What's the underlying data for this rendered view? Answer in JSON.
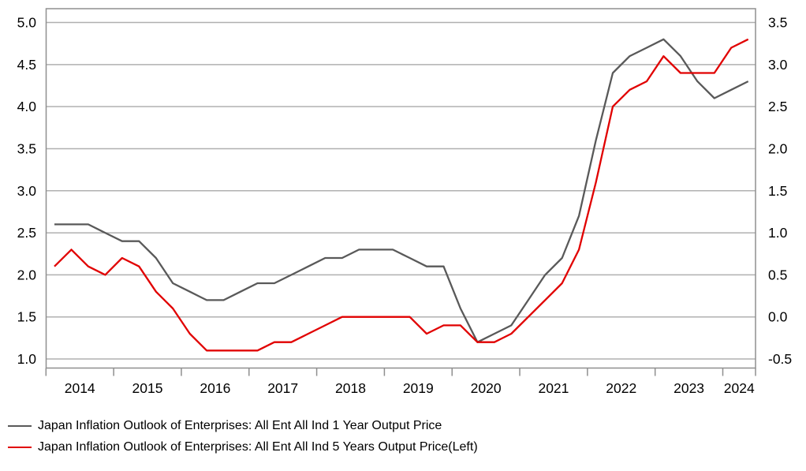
{
  "chart_data": {
    "type": "line",
    "title": "",
    "x": [
      "2014 Q1",
      "2014 Q2",
      "2014 Q3",
      "2014 Q4",
      "2015 Q1",
      "2015 Q2",
      "2015 Q3",
      "2015 Q4",
      "2016 Q1",
      "2016 Q2",
      "2016 Q3",
      "2016 Q4",
      "2017 Q1",
      "2017 Q2",
      "2017 Q3",
      "2017 Q4",
      "2018 Q1",
      "2018 Q2",
      "2018 Q3",
      "2018 Q4",
      "2019 Q1",
      "2019 Q2",
      "2019 Q3",
      "2019 Q4",
      "2020 Q1",
      "2020 Q2",
      "2020 Q3",
      "2020 Q4",
      "2021 Q1",
      "2021 Q2",
      "2021 Q3",
      "2021 Q4",
      "2022 Q1",
      "2022 Q2",
      "2022 Q3",
      "2022 Q4",
      "2023 Q1",
      "2023 Q2",
      "2023 Q3",
      "2023 Q4",
      "2024 Q1",
      "2024 Q2"
    ],
    "x_tick_labels": [
      "2014",
      "2015",
      "2016",
      "2017",
      "2018",
      "2019",
      "2020",
      "2021",
      "2022",
      "2023",
      "2024"
    ],
    "series": [
      {
        "name": "Japan Inflation Outlook of Enterprises: All Ent All Ind 1 Year Output Price",
        "axis": "right",
        "color": "#595959",
        "values": [
          1.1,
          1.1,
          1.1,
          1.0,
          0.9,
          0.9,
          0.7,
          0.4,
          0.3,
          0.2,
          0.2,
          0.3,
          0.4,
          0.4,
          0.5,
          0.6,
          0.7,
          0.7,
          0.8,
          0.8,
          0.8,
          0.7,
          0.6,
          0.6,
          0.1,
          -0.3,
          -0.2,
          -0.1,
          0.2,
          0.5,
          0.7,
          1.2,
          2.1,
          2.9,
          3.1,
          3.2,
          3.3,
          3.1,
          2.8,
          2.6,
          2.7,
          2.8
        ]
      },
      {
        "name": "Japan Inflation Outlook of Enterprises: All Ent All Ind 5 Years Output Price(Left)",
        "axis": "left",
        "color": "#e10000",
        "values": [
          2.1,
          2.3,
          2.1,
          2.0,
          2.2,
          2.1,
          1.8,
          1.6,
          1.3,
          1.1,
          1.1,
          1.1,
          1.1,
          1.2,
          1.2,
          1.3,
          1.4,
          1.5,
          1.5,
          1.5,
          1.5,
          1.5,
          1.3,
          1.4,
          1.4,
          1.2,
          1.2,
          1.3,
          1.5,
          1.7,
          1.9,
          2.3,
          3.1,
          4.0,
          4.2,
          4.3,
          4.6,
          4.4,
          4.4,
          4.4,
          4.7,
          4.8
        ]
      }
    ],
    "left_axis": {
      "min": 1.0,
      "max": 5.0,
      "tick_labels": [
        "5.0",
        "4.5",
        "4.0",
        "3.5",
        "3.0",
        "2.5",
        "2.0",
        "1.5",
        "1.0"
      ]
    },
    "right_axis": {
      "min": -0.5,
      "max": 3.5,
      "tick_labels": [
        "3.5",
        "3.0",
        "2.5",
        "2.0",
        "1.5",
        "1.0",
        "0.5",
        "0.0",
        "-0.5"
      ]
    },
    "grid": true,
    "legend_position": "bottom-left",
    "colors": {
      "grid": "#b0b0b0",
      "spine": "#8f8f8f",
      "text": "#000000",
      "background": "#ffffff"
    }
  }
}
